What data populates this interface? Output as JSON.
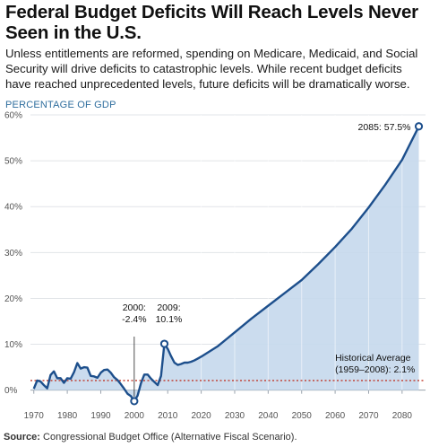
{
  "title": "Federal Budget Deficits Will Reach Levels Never Seen in the U.S.",
  "subtitle": "Unless entitlements are reformed, spending on Medicare, Medicaid, and Social Security will drive deficits to catastrophic levels. While recent budget deficits have reached unprecedented levels, future deficits will be dramatically worse.",
  "source": {
    "label": "Source:",
    "text": "Congressional Budget Office (Alternative Fiscal Scenario)."
  },
  "colors": {
    "line": "#1d4f8c",
    "area": "#c5d8ec",
    "average_line": "#c0392b",
    "accent_text": "#2f6e9e"
  },
  "chart_data": {
    "type": "area",
    "ylabel": "PERCENTAGE OF GDP",
    "xlim": [
      1969,
      2087
    ],
    "ylim": [
      -3,
      60
    ],
    "y_ticks": [
      "0%",
      "10%",
      "20%",
      "30%",
      "40%",
      "50%",
      "60%"
    ],
    "x_ticks": [
      "1970",
      "1980",
      "1990",
      "2000",
      "2010",
      "2020",
      "2030",
      "2040",
      "2050",
      "2060",
      "2070",
      "2080"
    ],
    "grid": true,
    "series": [
      {
        "values": [
          [
            1970,
            0.3
          ],
          [
            1971,
            2.1
          ],
          [
            1972,
            1.9
          ],
          [
            1973,
            1.1
          ],
          [
            1974,
            0.4
          ],
          [
            1975,
            3.3
          ],
          [
            1976,
            4.1
          ],
          [
            1977,
            2.6
          ],
          [
            1978,
            2.6
          ],
          [
            1979,
            1.6
          ],
          [
            1980,
            2.6
          ],
          [
            1981,
            2.5
          ],
          [
            1982,
            3.9
          ],
          [
            1983,
            5.9
          ],
          [
            1984,
            4.7
          ],
          [
            1985,
            5.0
          ],
          [
            1986,
            4.9
          ],
          [
            1987,
            3.1
          ],
          [
            1988,
            3.0
          ],
          [
            1989,
            2.7
          ],
          [
            1990,
            3.8
          ],
          [
            1991,
            4.4
          ],
          [
            1992,
            4.5
          ],
          [
            1993,
            3.8
          ],
          [
            1994,
            2.8
          ],
          [
            1995,
            2.2
          ],
          [
            1996,
            1.3
          ],
          [
            1997,
            0.3
          ],
          [
            1998,
            -0.8
          ],
          [
            1999,
            -1.3
          ],
          [
            2000,
            -2.4
          ],
          [
            2001,
            -1.2
          ],
          [
            2002,
            1.5
          ],
          [
            2003,
            3.4
          ],
          [
            2004,
            3.4
          ],
          [
            2005,
            2.5
          ],
          [
            2006,
            1.8
          ],
          [
            2007,
            1.1
          ],
          [
            2008,
            3.1
          ],
          [
            2009,
            10.1
          ],
          [
            2010,
            9.0
          ],
          [
            2011,
            7.4
          ],
          [
            2012,
            6.0
          ],
          [
            2013,
            5.5
          ],
          [
            2014,
            5.7
          ],
          [
            2015,
            6.0
          ],
          [
            2016,
            6.0
          ],
          [
            2017,
            6.2
          ],
          [
            2018,
            6.5
          ],
          [
            2019,
            6.9
          ],
          [
            2020,
            7.3
          ],
          [
            2025,
            9.6
          ],
          [
            2030,
            12.6
          ],
          [
            2035,
            15.6
          ],
          [
            2040,
            18.4
          ],
          [
            2045,
            21.2
          ],
          [
            2050,
            24.0
          ],
          [
            2055,
            27.5
          ],
          [
            2060,
            31.2
          ],
          [
            2065,
            35.2
          ],
          [
            2070,
            39.8
          ],
          [
            2075,
            44.8
          ],
          [
            2080,
            50.2
          ],
          [
            2085,
            57.5
          ]
        ]
      }
    ],
    "historical_average": {
      "value": 2.1,
      "label_line1": "Historical Average",
      "label_line2": "(1959–2008): 2.1%"
    },
    "annotations": [
      {
        "x": 2000,
        "y": -2.4,
        "line1": "2000:",
        "line2": "-2.4%"
      },
      {
        "x": 2009,
        "y": 10.1,
        "line1": "2009:",
        "line2": "10.1%"
      },
      {
        "x": 2085,
        "y": 57.5,
        "line1": "2085: 57.5%"
      }
    ]
  }
}
